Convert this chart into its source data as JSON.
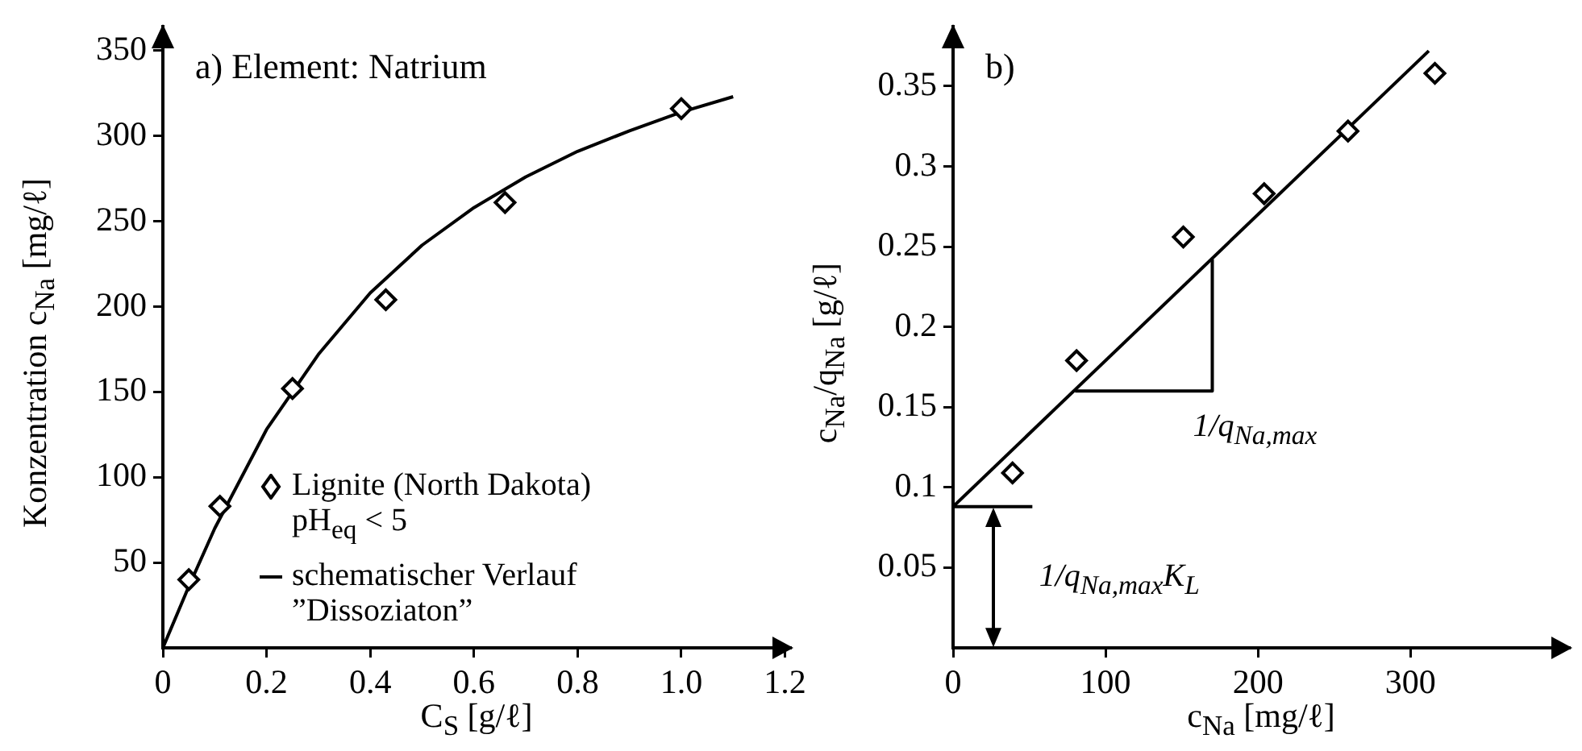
{
  "chart_data": [
    {
      "type": "scatter",
      "title": "a) Element: Natrium",
      "xlabel": "C$_{S}$ [g/ℓ]",
      "ylabel": "Konzentration c$_{Na}$ [mg/ℓ]",
      "xlim": [
        0,
        1.21
      ],
      "ylim": [
        0,
        364
      ],
      "xticks": [
        0,
        0.2,
        0.4,
        0.6,
        0.8,
        {
          "value": 1,
          "label": "1.0"
        },
        1.2
      ],
      "yticks": [
        50,
        100,
        150,
        200,
        250,
        300,
        350
      ],
      "grid": false,
      "legend": "bottom",
      "marker": "diamond",
      "series": [
        {
          "name": "Lignite (North Dakota) pH$_{eq}$ < 5",
          "type": "scatter",
          "color": "#000000",
          "x": [
            0.05,
            0.11,
            0.25,
            0.43,
            0.66,
            1.0
          ],
          "values": [
            40,
            83,
            152,
            204,
            261,
            316
          ]
        },
        {
          "name": "schematischer Verlauf ”Dissoziaton”",
          "type": "line",
          "marker": "none",
          "color": "#000000",
          "x": [
            0,
            0.05,
            0.1,
            0.2,
            0.3,
            0.4,
            0.5,
            0.6,
            0.7,
            0.8,
            0.9,
            1.0,
            1.1
          ],
          "values": [
            0,
            36,
            70,
            128,
            172,
            208,
            236,
            258,
            276,
            291,
            303,
            314,
            323
          ]
        }
      ]
    },
    {
      "type": "scatter",
      "title": "b)",
      "xlabel": "c$_{Na}$ [mg/ℓ]",
      "ylabel": "c$_{Na}$/q$_{Na}$ [g/ℓ]",
      "xlim": [
        0,
        404
      ],
      "ylim": [
        0,
        0.387
      ],
      "xticks": [
        0,
        100,
        200,
        300
      ],
      "yticks": [
        0.05,
        0.1,
        0.15,
        0.2,
        0.25,
        0.3,
        0.35
      ],
      "grid": false,
      "legend": false,
      "marker": "diamond",
      "annotations": [
        "1/q$_{Na,max}$",
        "1/q$_{Na,max}$K$_{L}$"
      ],
      "series": [
        {
          "type": "scatter",
          "color": "#000000",
          "x": [
            39,
            81,
            151,
            204,
            259,
            316
          ],
          "values": [
            0.109,
            0.179,
            0.256,
            0.283,
            0.322,
            0.358
          ]
        },
        {
          "type": "line",
          "marker": "none",
          "color": "#000000",
          "x": [
            0,
            312
          ],
          "values": [
            0.088,
            0.372
          ]
        },
        {
          "type": "line",
          "marker": "none",
          "color": "#000000",
          "x": [
            80,
            170,
            170
          ],
          "values": [
            0.16,
            0.16,
            0.242
          ]
        },
        {
          "type": "line",
          "marker": "none",
          "color": "#000000",
          "x": [
            0,
            52
          ],
          "values": [
            0.088,
            0.088
          ]
        }
      ]
    }
  ]
}
